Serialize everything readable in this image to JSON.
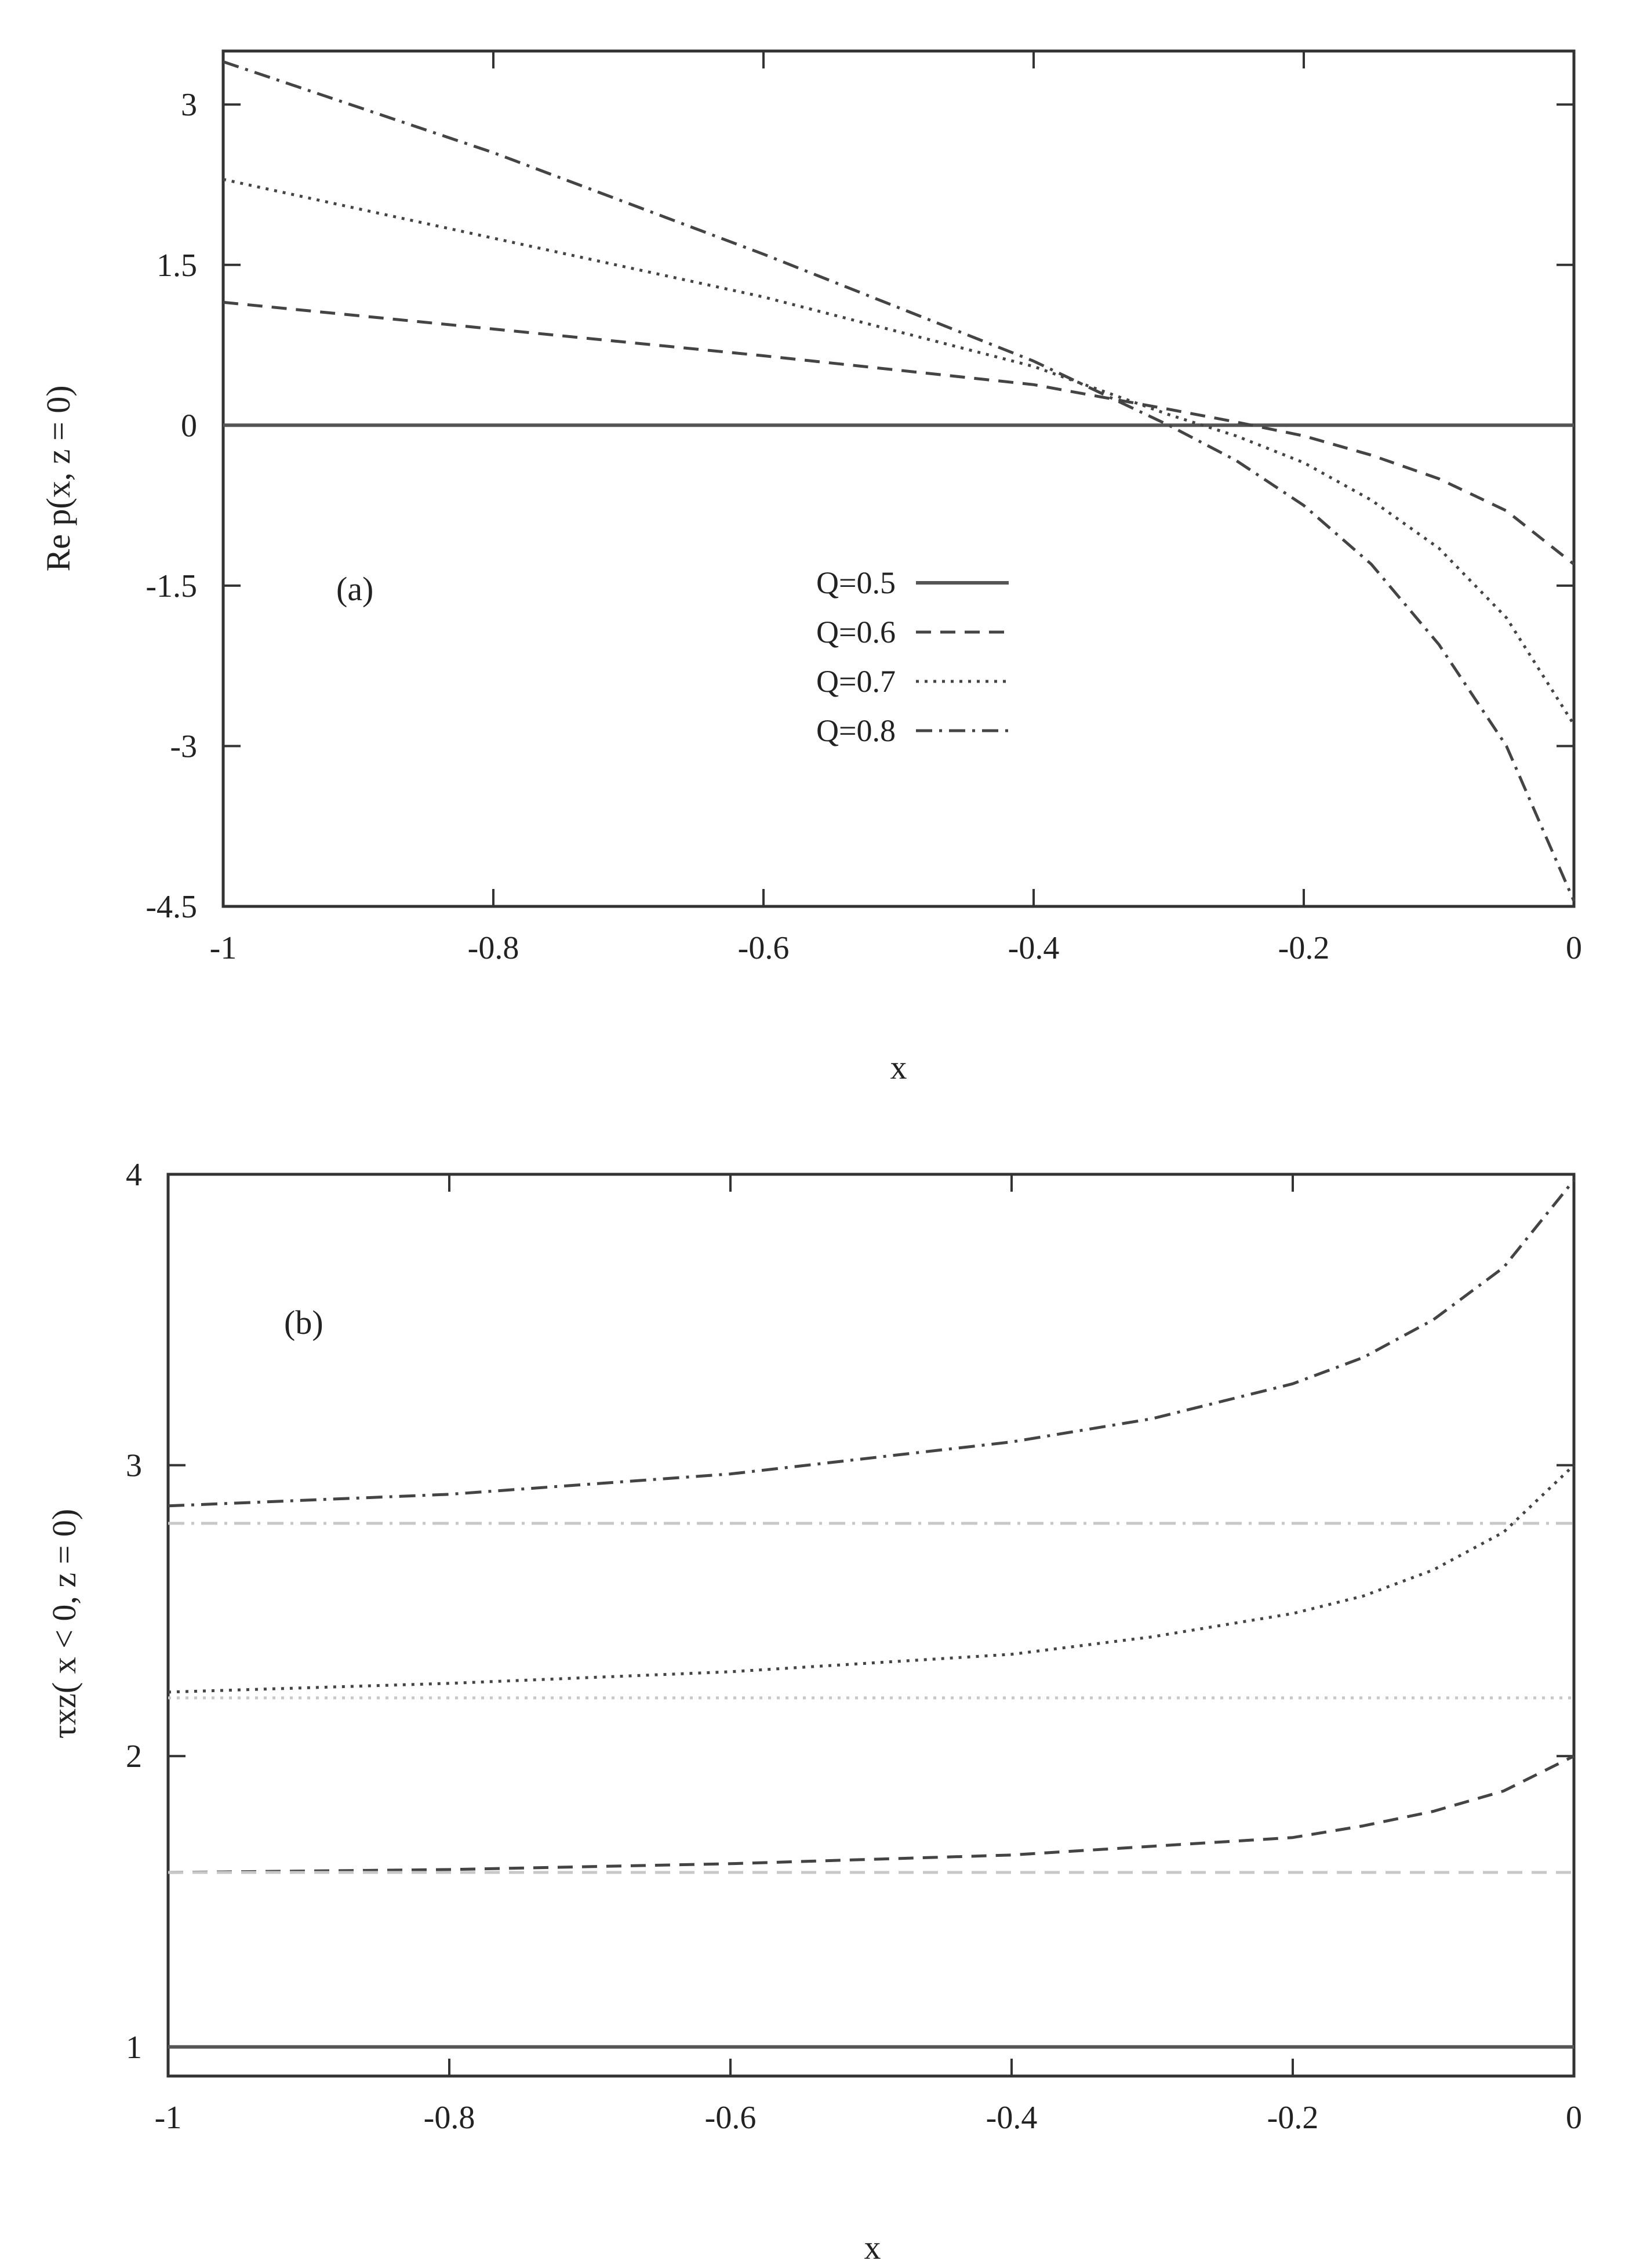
{
  "chart_data": [
    {
      "type": "line",
      "panel_label": "(a)",
      "xlabel": "x",
      "ylabel": "Re p(x, z = 0)",
      "xlim": [
        -1,
        0
      ],
      "ylim": [
        -4.5,
        3.5
      ],
      "x_ticks": [
        "-1",
        "-0.8",
        "-0.6",
        "-0.4",
        "-0.2",
        "0"
      ],
      "y_ticks": [
        "3",
        "1.5",
        "0",
        "-1.5",
        "-3",
        "-4.5"
      ],
      "x_tick_values": [
        -1,
        -0.8,
        -0.6,
        -0.4,
        -0.2,
        0
      ],
      "y_tick_values": [
        3,
        1.5,
        0,
        -1.5,
        -3,
        -4.5
      ],
      "legend_position": "center",
      "grid": false,
      "series": [
        {
          "name": "Q=0.5",
          "style": "solid",
          "color": "#555555",
          "x": [
            -1,
            -0.8,
            -0.6,
            -0.4,
            -0.3,
            -0.2,
            -0.1,
            0
          ],
          "y": [
            0,
            0,
            0,
            0,
            0,
            0,
            0,
            0
          ]
        },
        {
          "name": "Q=0.6",
          "style": "dashed",
          "color": "#444444",
          "x": [
            -1,
            -0.8,
            -0.6,
            -0.4,
            -0.3,
            -0.25,
            -0.2,
            -0.15,
            -0.1,
            -0.05,
            0
          ],
          "y": [
            1.15,
            0.9,
            0.65,
            0.38,
            0.15,
            0.03,
            -0.1,
            -0.28,
            -0.5,
            -0.8,
            -1.3
          ]
        },
        {
          "name": "Q=0.7",
          "style": "dotted",
          "color": "#444444",
          "x": [
            -1,
            -0.8,
            -0.6,
            -0.4,
            -0.3,
            -0.25,
            -0.2,
            -0.15,
            -0.1,
            -0.05,
            0
          ],
          "y": [
            2.3,
            1.75,
            1.2,
            0.55,
            0.1,
            -0.1,
            -0.35,
            -0.7,
            -1.15,
            -1.8,
            -2.8
          ]
        },
        {
          "name": "Q=0.8",
          "style": "dashdot",
          "color": "#444444",
          "x": [
            -1,
            -0.8,
            -0.6,
            -0.4,
            -0.3,
            -0.25,
            -0.2,
            -0.15,
            -0.1,
            -0.05,
            0
          ],
          "y": [
            3.4,
            2.55,
            1.6,
            0.6,
            0.0,
            -0.33,
            -0.75,
            -1.3,
            -2.05,
            -3.0,
            -4.45
          ]
        }
      ]
    },
    {
      "type": "line",
      "panel_label": "(b)",
      "xlabel": "x",
      "ylabel": "τxz( x < 0, z = 0)",
      "xlim": [
        -1,
        0
      ],
      "ylim": [
        0.9,
        4
      ],
      "x_ticks": [
        "-1",
        "-0.8",
        "-0.6",
        "-0.4",
        "-0.2",
        "0"
      ],
      "y_ticks": [
        "4",
        "3",
        "2",
        "1"
      ],
      "x_tick_values": [
        -1,
        -0.8,
        -0.6,
        -0.4,
        -0.2,
        0
      ],
      "y_tick_values": [
        4,
        3,
        2,
        1
      ],
      "grid": false,
      "series": [
        {
          "style": "solid",
          "color": "#555555",
          "x": [
            -1,
            0
          ],
          "y": [
            1.0,
            1.0
          ]
        },
        {
          "style": "dashed",
          "color": "#444444",
          "x": [
            -1,
            -0.8,
            -0.6,
            -0.4,
            -0.3,
            -0.2,
            -0.15,
            -0.1,
            -0.05,
            0
          ],
          "y": [
            1.6,
            1.61,
            1.63,
            1.66,
            1.69,
            1.72,
            1.76,
            1.81,
            1.88,
            2.0
          ]
        },
        {
          "style": "dotted",
          "color": "#444444",
          "x": [
            -1,
            -0.8,
            -0.6,
            -0.4,
            -0.3,
            -0.2,
            -0.15,
            -0.1,
            -0.05,
            0
          ],
          "y": [
            2.22,
            2.25,
            2.29,
            2.35,
            2.41,
            2.49,
            2.55,
            2.64,
            2.77,
            3.0
          ]
        },
        {
          "style": "dashdot",
          "color": "#444444",
          "x": [
            -1,
            -0.8,
            -0.6,
            -0.4,
            -0.3,
            -0.2,
            -0.15,
            -0.1,
            -0.05,
            0
          ],
          "y": [
            2.86,
            2.9,
            2.97,
            3.08,
            3.16,
            3.28,
            3.37,
            3.5,
            3.68,
            3.98
          ]
        },
        {
          "style": "dashed",
          "color": "#c8c8c8",
          "x": [
            -1,
            0
          ],
          "y": [
            1.6,
            1.6
          ]
        },
        {
          "style": "dotted",
          "color": "#c8c8c8",
          "x": [
            -1,
            0
          ],
          "y": [
            2.2,
            2.2
          ]
        },
        {
          "style": "dashdot",
          "color": "#c8c8c8",
          "x": [
            -1,
            0
          ],
          "y": [
            2.8,
            2.8
          ]
        }
      ]
    }
  ]
}
